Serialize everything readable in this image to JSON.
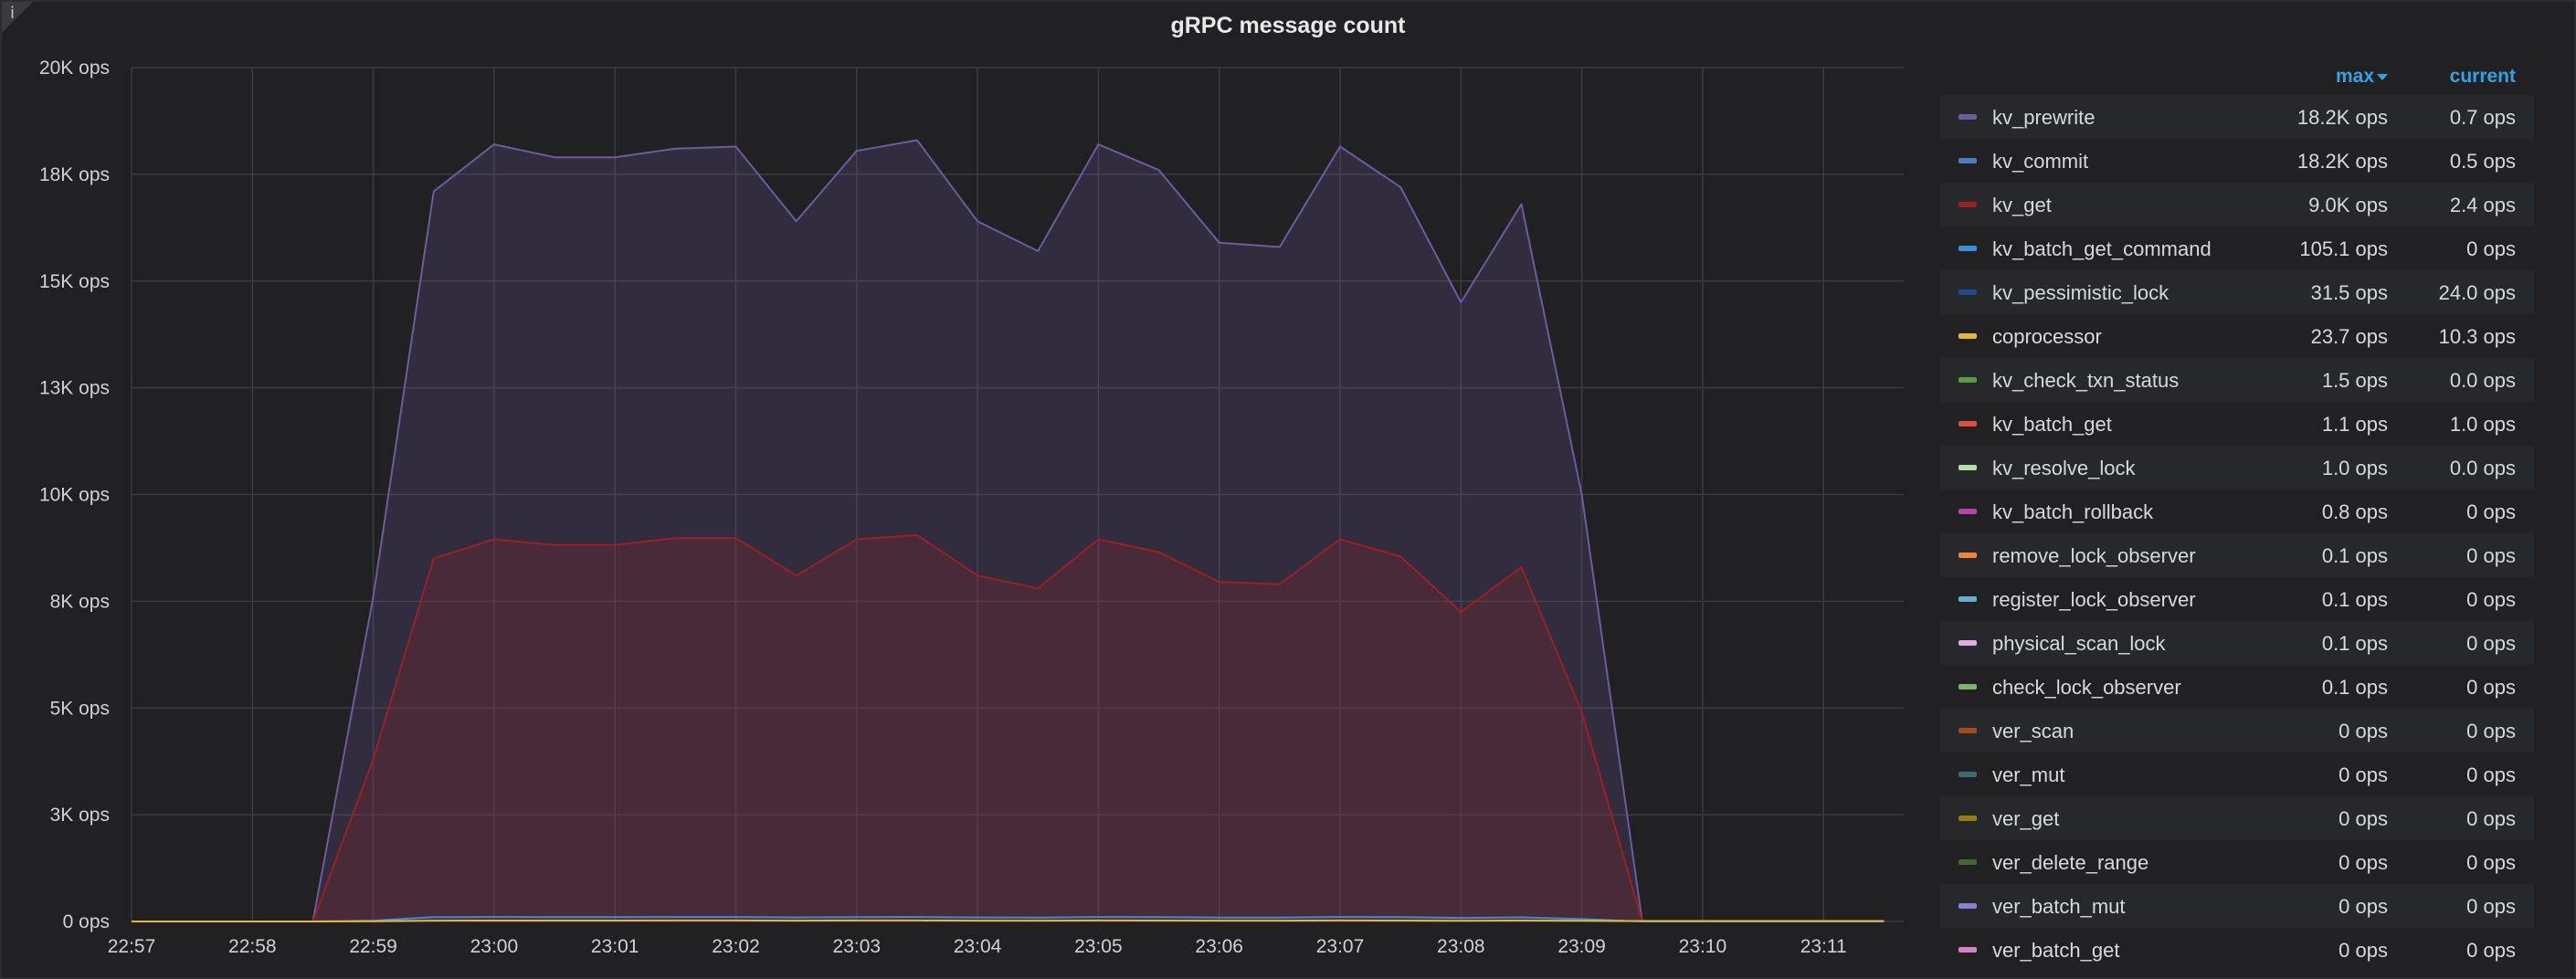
{
  "panel": {
    "title": "gRPC message count",
    "info_icon": "info-icon",
    "info_glyph": "i"
  },
  "legend": {
    "header_max": "max",
    "header_current": "current",
    "sort_icon": "sort-desc-icon",
    "items": [
      {
        "name": "kv_prewrite",
        "max": "18.2K ops",
        "current": "0.7 ops",
        "color": "#6e5a9e"
      },
      {
        "name": "kv_commit",
        "max": "18.2K ops",
        "current": "0.5 ops",
        "color": "#4a7fc1"
      },
      {
        "name": "kv_get",
        "max": "9.0K ops",
        "current": "2.4 ops",
        "color": "#9c1f24"
      },
      {
        "name": "kv_batch_get_command",
        "max": "105.1 ops",
        "current": "0 ops",
        "color": "#3b8fd8"
      },
      {
        "name": "kv_pessimistic_lock",
        "max": "31.5 ops",
        "current": "24.0 ops",
        "color": "#1e4f8a"
      },
      {
        "name": "coprocessor",
        "max": "23.7 ops",
        "current": "10.3 ops",
        "color": "#e8b73a"
      },
      {
        "name": "kv_check_txn_status",
        "max": "1.5 ops",
        "current": "0.0 ops",
        "color": "#5c9c3c"
      },
      {
        "name": "kv_batch_get",
        "max": "1.1 ops",
        "current": "1.0 ops",
        "color": "#e24d42"
      },
      {
        "name": "kv_resolve_lock",
        "max": "1.0 ops",
        "current": "0.0 ops",
        "color": "#b8dfa3"
      },
      {
        "name": "kv_batch_rollback",
        "max": "0.8 ops",
        "current": "0 ops",
        "color": "#ba43a9"
      },
      {
        "name": "remove_lock_observer",
        "max": "0.1 ops",
        "current": "0 ops",
        "color": "#ef843c"
      },
      {
        "name": "register_lock_observer",
        "max": "0.1 ops",
        "current": "0 ops",
        "color": "#64b0c8"
      },
      {
        "name": "physical_scan_lock",
        "max": "0.1 ops",
        "current": "0 ops",
        "color": "#e5a8e2"
      },
      {
        "name": "check_lock_observer",
        "max": "0.1 ops",
        "current": "0 ops",
        "color": "#7eb26d"
      },
      {
        "name": "ver_scan",
        "max": "0 ops",
        "current": "0 ops",
        "color": "#a04d1a"
      },
      {
        "name": "ver_mut",
        "max": "0 ops",
        "current": "0 ops",
        "color": "#3d6a73"
      },
      {
        "name": "ver_get",
        "max": "0 ops",
        "current": "0 ops",
        "color": "#9a7a12"
      },
      {
        "name": "ver_delete_range",
        "max": "0 ops",
        "current": "0 ops",
        "color": "#3f6833"
      },
      {
        "name": "ver_batch_mut",
        "max": "0 ops",
        "current": "0 ops",
        "color": "#8a7fd3"
      },
      {
        "name": "ver_batch_get",
        "max": "0 ops",
        "current": "0 ops",
        "color": "#d683ce"
      }
    ]
  },
  "chart_data": {
    "type": "area",
    "title": "gRPC message count",
    "x_tick_labels": [
      "22:57",
      "22:58",
      "22:59",
      "23:00",
      "23:01",
      "23:02",
      "23:03",
      "23:04",
      "23:05",
      "23:06",
      "23:07",
      "23:08",
      "23:09",
      "23:10",
      "23:11"
    ],
    "y_tick_labels": [
      "0 ops",
      "3K ops",
      "5K ops",
      "8K ops",
      "10K ops",
      "13K ops",
      "15K ops",
      "18K ops",
      "20K ops"
    ],
    "ylim": [
      0,
      20000
    ],
    "grid": true,
    "legend_position": "right",
    "x_minutes": [
      0,
      0.5,
      1,
      1.5,
      2,
      2.5,
      3,
      3.5,
      4,
      4.5,
      5,
      5.5,
      6,
      6.5,
      7,
      7.5,
      8,
      8.5,
      9,
      9.5,
      10,
      10.5,
      11,
      11.5,
      12,
      12.5,
      13,
      13.5,
      14,
      14.5
    ],
    "x_axis_note": "minutes after 22:57",
    "series": [
      {
        "name": "kv_prewrite",
        "color": "#6e5a9e",
        "fill": true,
        "values": [
          0,
          0,
          0,
          0,
          7600,
          17100,
          18200,
          17900,
          17900,
          18100,
          18150,
          16400,
          18050,
          18300,
          16400,
          15700,
          18200,
          17600,
          15900,
          15800,
          18150,
          17200,
          14500,
          16800,
          10000,
          0,
          0,
          0,
          0,
          0
        ]
      },
      {
        "name": "kv_get",
        "color": "#9c1f24",
        "fill": true,
        "values": [
          0,
          0,
          0,
          0,
          3800,
          8500,
          8950,
          8820,
          8820,
          8980,
          8980,
          8100,
          8950,
          9050,
          8100,
          7800,
          8950,
          8650,
          7950,
          7900,
          8950,
          8550,
          7250,
          8300,
          4900,
          0,
          0,
          0,
          0,
          0
        ]
      },
      {
        "name": "kv_batch_get_command",
        "color": "#3b8fd8",
        "fill": false,
        "values": [
          0,
          0,
          0,
          0,
          20,
          100,
          105,
          100,
          100,
          104,
          105,
          95,
          103,
          105,
          95,
          90,
          104,
          100,
          92,
          91,
          104,
          100,
          84,
          97,
          55,
          0,
          0,
          0,
          0,
          0
        ]
      },
      {
        "name": "coprocessor",
        "color": "#e8b73a",
        "fill": false,
        "values": [
          0,
          0,
          0,
          0,
          5,
          20,
          22,
          22,
          22,
          23,
          23,
          20,
          23,
          23,
          20,
          19,
          23,
          22,
          20,
          20,
          23,
          22,
          18,
          21,
          15,
          10,
          10,
          10,
          10,
          10
        ]
      }
    ]
  }
}
